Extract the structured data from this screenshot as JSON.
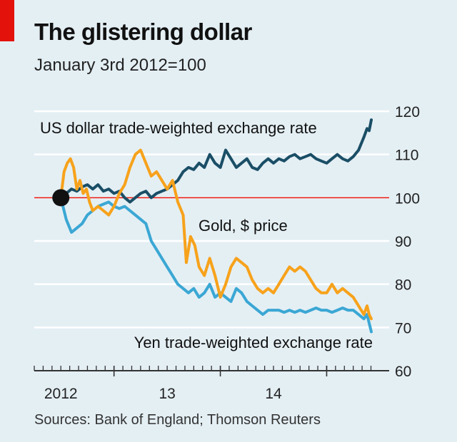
{
  "header": {
    "title": "The glistering dollar",
    "subtitle": "January 3rd 2012=100"
  },
  "footer": {
    "source": "Sources: Bank of England; Thomson Reuters"
  },
  "colors": {
    "background": "#e4eff4",
    "gridline": "#ffffff",
    "baseline_100": "#e3120b",
    "us_dollar": "#1a4e66",
    "gold": "#f7a21b",
    "yen": "#3ba7d4",
    "marker": "#111111",
    "brand_red": "#e3120b"
  },
  "chart_data": {
    "type": "line",
    "x_unit": "years (decimal)",
    "xlim": [
      2011.75,
      2014.92
    ],
    "ylim": [
      60,
      120
    ],
    "yticks": [
      60,
      70,
      80,
      90,
      100,
      110,
      120
    ],
    "ytick_labels": [
      "60",
      "70",
      "80",
      "90",
      "100",
      "110",
      "120"
    ],
    "xtick_labels": [
      {
        "x": 2012.0,
        "label": "2012"
      },
      {
        "x": 2013.0,
        "label": "13"
      },
      {
        "x": 2014.0,
        "label": "14"
      }
    ],
    "year_boundaries": [
      2012.5,
      2013.5,
      2014.5
    ],
    "axis_side": "right",
    "grid": true,
    "reference_line": 100,
    "start_marker": {
      "x": 2012.0,
      "y": 100
    },
    "series": [
      {
        "name": "US dollar trade-weighted exchange rate",
        "color_key": "us_dollar",
        "points": [
          [
            2012.0,
            100
          ],
          [
            2012.05,
            101
          ],
          [
            2012.1,
            102
          ],
          [
            2012.15,
            101.5
          ],
          [
            2012.2,
            102.5
          ],
          [
            2012.25,
            103
          ],
          [
            2012.3,
            102
          ],
          [
            2012.35,
            103
          ],
          [
            2012.4,
            101.5
          ],
          [
            2012.45,
            102
          ],
          [
            2012.5,
            101
          ],
          [
            2012.55,
            101.5
          ],
          [
            2012.6,
            100
          ],
          [
            2012.65,
            99
          ],
          [
            2012.7,
            100
          ],
          [
            2012.75,
            101
          ],
          [
            2012.8,
            101.5
          ],
          [
            2012.85,
            100
          ],
          [
            2012.9,
            101
          ],
          [
            2012.95,
            101.5
          ],
          [
            2013.0,
            102
          ],
          [
            2013.05,
            103
          ],
          [
            2013.1,
            104
          ],
          [
            2013.15,
            106
          ],
          [
            2013.2,
            107
          ],
          [
            2013.25,
            106.5
          ],
          [
            2013.3,
            108
          ],
          [
            2013.35,
            107
          ],
          [
            2013.4,
            110
          ],
          [
            2013.45,
            108
          ],
          [
            2013.5,
            107
          ],
          [
            2013.55,
            111
          ],
          [
            2013.6,
            109
          ],
          [
            2013.65,
            107
          ],
          [
            2013.7,
            108
          ],
          [
            2013.75,
            109
          ],
          [
            2013.8,
            107
          ],
          [
            2013.85,
            106.5
          ],
          [
            2013.9,
            108
          ],
          [
            2013.95,
            109
          ],
          [
            2014.0,
            108
          ],
          [
            2014.05,
            109
          ],
          [
            2014.1,
            108.5
          ],
          [
            2014.15,
            109.5
          ],
          [
            2014.2,
            110
          ],
          [
            2014.25,
            109
          ],
          [
            2014.3,
            109.5
          ],
          [
            2014.35,
            110
          ],
          [
            2014.4,
            109
          ],
          [
            2014.45,
            108.5
          ],
          [
            2014.5,
            108
          ],
          [
            2014.55,
            109
          ],
          [
            2014.6,
            110
          ],
          [
            2014.65,
            109
          ],
          [
            2014.7,
            108.5
          ],
          [
            2014.75,
            109.5
          ],
          [
            2014.8,
            111
          ],
          [
            2014.85,
            114
          ],
          [
            2014.88,
            116
          ],
          [
            2014.9,
            115.5
          ],
          [
            2014.92,
            118
          ]
        ]
      },
      {
        "name": "Gold, $ price",
        "color_key": "gold",
        "points": [
          [
            2012.0,
            100
          ],
          [
            2012.03,
            106
          ],
          [
            2012.06,
            108
          ],
          [
            2012.09,
            109
          ],
          [
            2012.12,
            107
          ],
          [
            2012.15,
            102
          ],
          [
            2012.18,
            104
          ],
          [
            2012.21,
            101
          ],
          [
            2012.24,
            102
          ],
          [
            2012.27,
            99
          ],
          [
            2012.3,
            97
          ],
          [
            2012.35,
            98
          ],
          [
            2012.4,
            97
          ],
          [
            2012.45,
            96
          ],
          [
            2012.5,
            98
          ],
          [
            2012.55,
            101
          ],
          [
            2012.6,
            103
          ],
          [
            2012.65,
            107
          ],
          [
            2012.7,
            110
          ],
          [
            2012.75,
            111
          ],
          [
            2012.8,
            108
          ],
          [
            2012.85,
            105
          ],
          [
            2012.9,
            106
          ],
          [
            2012.95,
            104
          ],
          [
            2013.0,
            102
          ],
          [
            2013.05,
            104
          ],
          [
            2013.1,
            99
          ],
          [
            2013.15,
            96
          ],
          [
            2013.18,
            85
          ],
          [
            2013.22,
            91
          ],
          [
            2013.26,
            89
          ],
          [
            2013.3,
            84
          ],
          [
            2013.35,
            82
          ],
          [
            2013.4,
            86
          ],
          [
            2013.45,
            82
          ],
          [
            2013.5,
            77
          ],
          [
            2013.55,
            80
          ],
          [
            2013.6,
            84
          ],
          [
            2013.65,
            86
          ],
          [
            2013.7,
            85
          ],
          [
            2013.75,
            84
          ],
          [
            2013.8,
            81
          ],
          [
            2013.85,
            79
          ],
          [
            2013.9,
            78
          ],
          [
            2013.95,
            79
          ],
          [
            2014.0,
            78
          ],
          [
            2014.05,
            80
          ],
          [
            2014.1,
            82
          ],
          [
            2014.15,
            84
          ],
          [
            2014.2,
            83
          ],
          [
            2014.25,
            84
          ],
          [
            2014.3,
            83
          ],
          [
            2014.35,
            81
          ],
          [
            2014.4,
            79
          ],
          [
            2014.45,
            78
          ],
          [
            2014.5,
            78
          ],
          [
            2014.55,
            80
          ],
          [
            2014.6,
            78
          ],
          [
            2014.65,
            79
          ],
          [
            2014.7,
            78
          ],
          [
            2014.75,
            77
          ],
          [
            2014.8,
            75
          ],
          [
            2014.85,
            73
          ],
          [
            2014.88,
            75
          ],
          [
            2014.9,
            73
          ],
          [
            2014.92,
            72
          ]
        ]
      },
      {
        "name": "Yen trade-weighted exchange rate",
        "color_key": "yen",
        "points": [
          [
            2012.0,
            100
          ],
          [
            2012.05,
            95
          ],
          [
            2012.1,
            92
          ],
          [
            2012.15,
            93
          ],
          [
            2012.2,
            94
          ],
          [
            2012.25,
            96
          ],
          [
            2012.3,
            97
          ],
          [
            2012.35,
            98
          ],
          [
            2012.4,
            98.5
          ],
          [
            2012.45,
            99
          ],
          [
            2012.5,
            98
          ],
          [
            2012.55,
            97.5
          ],
          [
            2012.6,
            98
          ],
          [
            2012.65,
            97
          ],
          [
            2012.7,
            96
          ],
          [
            2012.75,
            95
          ],
          [
            2012.8,
            94
          ],
          [
            2012.85,
            90
          ],
          [
            2012.9,
            88
          ],
          [
            2012.95,
            86
          ],
          [
            2013.0,
            84
          ],
          [
            2013.05,
            82
          ],
          [
            2013.1,
            80
          ],
          [
            2013.15,
            79
          ],
          [
            2013.2,
            78
          ],
          [
            2013.25,
            79
          ],
          [
            2013.3,
            77
          ],
          [
            2013.35,
            78
          ],
          [
            2013.4,
            80
          ],
          [
            2013.45,
            77
          ],
          [
            2013.5,
            78
          ],
          [
            2013.55,
            77
          ],
          [
            2013.6,
            76
          ],
          [
            2013.65,
            79
          ],
          [
            2013.7,
            78
          ],
          [
            2013.75,
            76
          ],
          [
            2013.8,
            75
          ],
          [
            2013.85,
            74
          ],
          [
            2013.9,
            73
          ],
          [
            2013.95,
            74
          ],
          [
            2014.0,
            74
          ],
          [
            2014.05,
            74
          ],
          [
            2014.1,
            73.5
          ],
          [
            2014.15,
            74
          ],
          [
            2014.2,
            73.5
          ],
          [
            2014.25,
            74
          ],
          [
            2014.3,
            73.5
          ],
          [
            2014.35,
            74
          ],
          [
            2014.4,
            74.5
          ],
          [
            2014.45,
            74
          ],
          [
            2014.5,
            74
          ],
          [
            2014.55,
            73.5
          ],
          [
            2014.6,
            74
          ],
          [
            2014.65,
            74.5
          ],
          [
            2014.7,
            74
          ],
          [
            2014.75,
            74
          ],
          [
            2014.8,
            73
          ],
          [
            2014.85,
            72
          ],
          [
            2014.88,
            73
          ],
          [
            2014.9,
            71
          ],
          [
            2014.92,
            69
          ]
        ]
      }
    ],
    "annotations": [
      {
        "series": "US dollar trade-weighted exchange rate",
        "text": "US dollar trade-weighted exchange rate"
      },
      {
        "series": "Gold, $ price",
        "text": "Gold, $ price"
      },
      {
        "series": "Yen trade-weighted exchange rate",
        "text": "Yen trade-weighted exchange rate"
      }
    ]
  }
}
